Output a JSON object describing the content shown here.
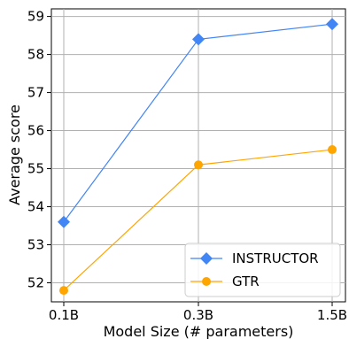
{
  "chart_data": {
    "type": "line",
    "title": "",
    "xlabel": "Model Size (# parameters)",
    "ylabel": "Average score",
    "categories": [
      "0.1B",
      "0.3B",
      "1.5B"
    ],
    "ylim": [
      51.5,
      59.2
    ],
    "yticks": [
      52,
      53,
      54,
      55,
      56,
      57,
      58,
      59
    ],
    "grid": true,
    "legend_position": "lower-right",
    "series": [
      {
        "name": "INSTRUCTOR",
        "values": [
          53.6,
          58.4,
          58.8
        ],
        "color": "#4285f4",
        "marker": "diamond"
      },
      {
        "name": "GTR",
        "values": [
          51.8,
          55.1,
          55.5
        ],
        "color": "#ffa500",
        "marker": "circle"
      }
    ]
  }
}
